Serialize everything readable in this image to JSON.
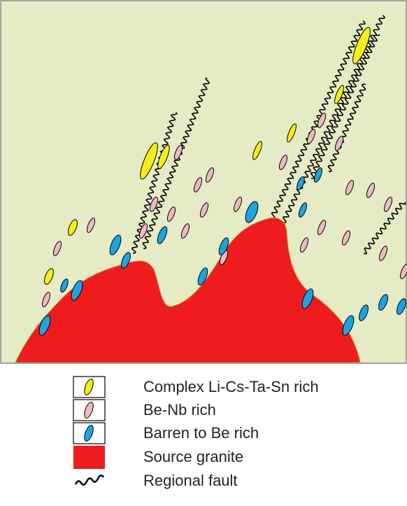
{
  "legend": [
    {
      "label": "Complex Li-Cs-Ta-Sn rich"
    },
    {
      "label": "Be-Nb rich"
    },
    {
      "label": "Barren to Be rich"
    },
    {
      "label": "Source granite"
    },
    {
      "label": "Regional fault"
    }
  ]
}
